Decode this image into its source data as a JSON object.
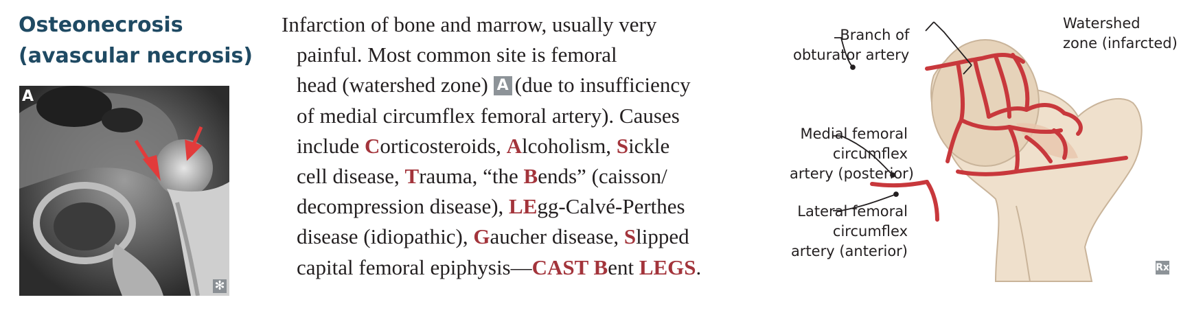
{
  "title": {
    "line1": "Osteonecrosis",
    "line2": "(avascular necrosis)"
  },
  "image": {
    "badge": "A",
    "corner_mark": "✻"
  },
  "text": {
    "l1": "Infarction of bone and marrow, usually very",
    "l2": "painful. Most common site is femoral",
    "l3a": "head (watershed zone)",
    "l3_ref": "A",
    "l3b": "(due to insufficiency",
    "l4": "of medial circumflex femoral artery). Causes",
    "l5": [
      "include ",
      "C",
      "orticosteroids, ",
      "A",
      "lcoholism, ",
      "S",
      "ickle"
    ],
    "l6": [
      "cell disease, ",
      "T",
      "rauma, “the ",
      "B",
      "ends” (caisson/"
    ],
    "l7": [
      "decompression disease), ",
      "LE",
      "gg-Calvé-Perthes"
    ],
    "l8": [
      "disease (idiopathic), ",
      "G",
      "aucher disease, ",
      "S",
      "lipped"
    ],
    "l9": [
      "capital femoral epiphysis—",
      "CAST B",
      "ent ",
      "LEGS",
      "."
    ]
  },
  "diagram": {
    "branch_l1": "Branch of",
    "branch_l2": "obturator artery",
    "watershed_l1": "Watershed",
    "watershed_l2": "zone (infarcted)",
    "medial_l1": "Medial femoral",
    "medial_l2": "circumflex",
    "medial_l3": "artery (posterior)",
    "lateral_l1": "Lateral femoral",
    "lateral_l2": "circumflex",
    "lateral_l3": "artery (anterior)",
    "rx_mark": "Rx"
  },
  "colors": {
    "title": "#1f4a63",
    "highlight": "#a3343b",
    "artery": "#c8383c",
    "bone": "#efe0cc"
  }
}
